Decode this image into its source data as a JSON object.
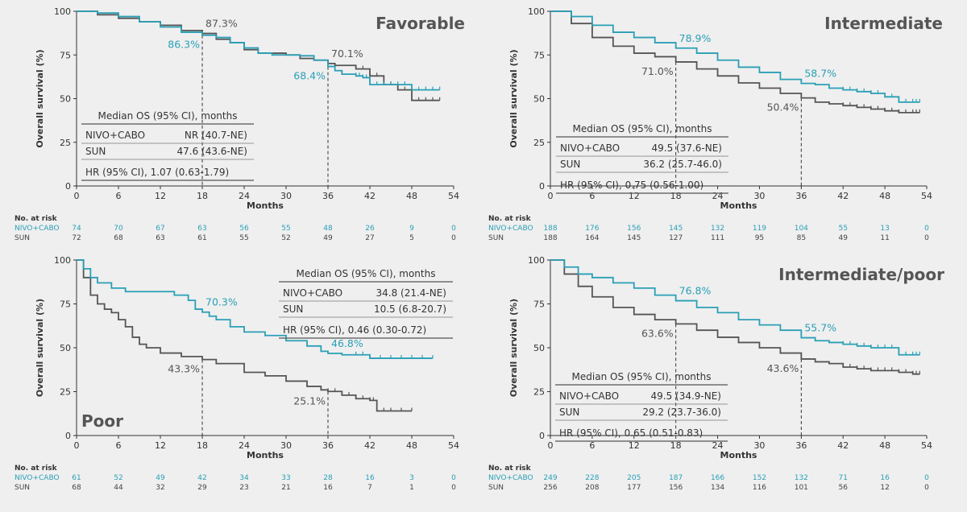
{
  "colors": {
    "nivo": "#2a9fb6",
    "sun": "#555555",
    "axis": "#333333"
  },
  "chart_data": [
    {
      "type": "line",
      "title": "Favorable",
      "xlabel": "Months",
      "ylabel": "Overall survival (%)",
      "xlim": [
        0,
        54
      ],
      "ylim": [
        0,
        100
      ],
      "xticks": [
        "0",
        "6",
        "12",
        "18",
        "24",
        "30",
        "36",
        "42",
        "48",
        "54"
      ],
      "yticks": [
        "0",
        "25",
        "50",
        "75",
        "100"
      ],
      "series": [
        {
          "name": "NIVO+CABO",
          "x": [
            0,
            3,
            6,
            9,
            12,
            15,
            18,
            20,
            22,
            24,
            26,
            28,
            30,
            32,
            34,
            36,
            37,
            38,
            39,
            40,
            41,
            42,
            44,
            46,
            48,
            50,
            52
          ],
          "values": [
            100,
            99,
            97,
            94,
            91,
            88,
            86.3,
            85,
            82,
            79,
            76,
            75,
            75,
            74.5,
            72,
            68.4,
            66,
            64,
            64,
            63,
            62,
            58,
            58,
            58,
            55,
            55,
            55
          ]
        },
        {
          "name": "SUN",
          "x": [
            0,
            3,
            6,
            9,
            12,
            15,
            18,
            20,
            22,
            24,
            26,
            28,
            30,
            32,
            34,
            36,
            37,
            38,
            40,
            42,
            44,
            46,
            48,
            50,
            52
          ],
          "values": [
            100,
            98,
            96,
            94,
            92,
            89,
            87.3,
            84,
            82,
            78,
            76,
            76,
            75,
            73,
            72,
            70.1,
            69,
            69,
            67,
            63,
            58,
            55,
            49,
            49,
            49
          ]
        }
      ],
      "annotations": [
        {
          "label": "86.3%",
          "series": "NIVO+CABO",
          "x": 18
        },
        {
          "label": "87.3%",
          "series": "SUN",
          "x": 18
        },
        {
          "label": "68.4%",
          "series": "NIVO+CABO",
          "x": 36
        },
        {
          "label": "70.1%",
          "series": "SUN",
          "x": 36
        }
      ],
      "median_table": {
        "header": "Median OS (95% CI), months",
        "rows": [
          {
            "arm": "NIVO+CABO",
            "value": "NR (40.7-NE)"
          },
          {
            "arm": "SUN",
            "value": "47.6 (43.6-NE)"
          }
        ],
        "hr": "HR (95% CI), 1.07 (0.63-1.79)"
      },
      "at_risk": {
        "title": "No. at risk",
        "rows": [
          {
            "arm": "NIVO+CABO",
            "values": [
              "74",
              "70",
              "67",
              "63",
              "56",
              "55",
              "48",
              "26",
              "9",
              "0"
            ]
          },
          {
            "arm": "SUN",
            "values": [
              "72",
              "68",
              "63",
              "61",
              "55",
              "52",
              "49",
              "27",
              "5",
              "0"
            ]
          }
        ]
      }
    },
    {
      "type": "line",
      "title": "Intermediate",
      "xlabel": "Months",
      "ylabel": "Overall survival (%)",
      "xlim": [
        0,
        54
      ],
      "ylim": [
        0,
        100
      ],
      "xticks": [
        "0",
        "6",
        "12",
        "18",
        "24",
        "30",
        "36",
        "42",
        "48",
        "54"
      ],
      "yticks": [
        "0",
        "25",
        "50",
        "75",
        "100"
      ],
      "series": [
        {
          "name": "NIVO+CABO",
          "x": [
            0,
            3,
            6,
            9,
            12,
            15,
            18,
            21,
            24,
            27,
            30,
            33,
            36,
            38,
            40,
            42,
            44,
            46,
            48,
            50,
            52,
            53
          ],
          "values": [
            100,
            97,
            92,
            88,
            85,
            82,
            78.9,
            76,
            72,
            68,
            65,
            61,
            58.7,
            58,
            56,
            55,
            54,
            53,
            51,
            48,
            48,
            48
          ]
        },
        {
          "name": "SUN",
          "x": [
            0,
            3,
            6,
            9,
            12,
            15,
            18,
            21,
            24,
            27,
            30,
            33,
            36,
            38,
            40,
            42,
            44,
            46,
            48,
            50,
            52,
            53
          ],
          "values": [
            100,
            93,
            85,
            80,
            76,
            74,
            71,
            67,
            63,
            59,
            56,
            53,
            50.4,
            48,
            47,
            46,
            45,
            44,
            43,
            42,
            42,
            42
          ]
        }
      ],
      "annotations": [
        {
          "label": "78.9%",
          "series": "NIVO+CABO",
          "x": 18
        },
        {
          "label": "71.0%",
          "series": "SUN",
          "x": 18
        },
        {
          "label": "58.7%",
          "series": "NIVO+CABO",
          "x": 36
        },
        {
          "label": "50.4%",
          "series": "SUN",
          "x": 36
        }
      ],
      "median_table": {
        "header": "Median OS (95% CI), months",
        "rows": [
          {
            "arm": "NIVO+CABO",
            "value": "49.5 (37.6-NE)"
          },
          {
            "arm": "SUN",
            "value": "36.2 (25.7-46.0)"
          }
        ],
        "hr": "HR (95% CI), 0.75 (0.56-1.00)"
      },
      "at_risk": {
        "title": "No. at risk",
        "rows": [
          {
            "arm": "NIVO+CABO",
            "values": [
              "188",
              "176",
              "156",
              "145",
              "132",
              "119",
              "104",
              "55",
              "13",
              "0"
            ]
          },
          {
            "arm": "SUN",
            "values": [
              "188",
              "164",
              "145",
              "127",
              "111",
              "95",
              "85",
              "49",
              "11",
              "0"
            ]
          }
        ]
      }
    },
    {
      "type": "line",
      "title": "Poor",
      "xlabel": "Months",
      "ylabel": "Overall survival (%)",
      "xlim": [
        0,
        54
      ],
      "ylim": [
        0,
        100
      ],
      "xticks": [
        "0",
        "6",
        "12",
        "18",
        "24",
        "30",
        "36",
        "42",
        "48",
        "54"
      ],
      "yticks": [
        "0",
        "25",
        "50",
        "75",
        "100"
      ],
      "series": [
        {
          "name": "NIVO+CABO",
          "x": [
            0,
            1,
            2,
            3,
            5,
            7,
            9,
            12,
            14,
            16,
            17,
            18,
            19,
            20,
            22,
            24,
            27,
            30,
            33,
            35,
            36,
            38,
            40,
            42,
            45,
            48,
            51
          ],
          "values": [
            100,
            95,
            90,
            87,
            84,
            82,
            82,
            82,
            80,
            77,
            72,
            70.3,
            68,
            66,
            62,
            59,
            57,
            54,
            51,
            48,
            46.8,
            46,
            46,
            44,
            44,
            44,
            44
          ]
        },
        {
          "name": "SUN",
          "x": [
            0,
            1,
            2,
            3,
            4,
            5,
            6,
            7,
            8,
            9,
            10,
            12,
            15,
            18,
            20,
            24,
            27,
            30,
            33,
            35,
            36,
            38,
            40,
            42,
            43,
            45,
            48
          ],
          "values": [
            100,
            90,
            80,
            75,
            72,
            70,
            66,
            62,
            56,
            52,
            50,
            47,
            45,
            43.3,
            41,
            36,
            34,
            31,
            28,
            26,
            25.1,
            23,
            21,
            20,
            14,
            14,
            14
          ]
        }
      ],
      "annotations": [
        {
          "label": "70.3%",
          "series": "NIVO+CABO",
          "x": 18
        },
        {
          "label": "43.3%",
          "series": "SUN",
          "x": 18
        },
        {
          "label": "46.8%",
          "series": "NIVO+CABO",
          "x": 36
        },
        {
          "label": "25.1%",
          "series": "SUN",
          "x": 36
        }
      ],
      "median_table": {
        "header": "Median OS (95% CI), months",
        "rows": [
          {
            "arm": "NIVO+CABO",
            "value": "34.8 (21.4-NE)"
          },
          {
            "arm": "SUN",
            "value": "10.5 (6.8-20.7)"
          }
        ],
        "hr": "HR (95% CI), 0.46 (0.30-0.72)"
      },
      "at_risk": {
        "title": "No. at risk",
        "rows": [
          {
            "arm": "NIVO+CABO",
            "values": [
              "61",
              "52",
              "49",
              "42",
              "34",
              "33",
              "28",
              "16",
              "3",
              "0"
            ]
          },
          {
            "arm": "SUN",
            "values": [
              "68",
              "44",
              "32",
              "29",
              "23",
              "21",
              "16",
              "7",
              "1",
              "0"
            ]
          }
        ]
      }
    },
    {
      "type": "line",
      "title": "Intermediate/poor",
      "xlabel": "Months",
      "ylabel": "Overall survival (%)",
      "xlim": [
        0,
        54
      ],
      "ylim": [
        0,
        100
      ],
      "xticks": [
        "0",
        "6",
        "12",
        "18",
        "24",
        "30",
        "36",
        "42",
        "48",
        "54"
      ],
      "yticks": [
        "0",
        "25",
        "50",
        "75",
        "100"
      ],
      "series": [
        {
          "name": "NIVO+CABO",
          "x": [
            0,
            2,
            4,
            6,
            9,
            12,
            15,
            18,
            21,
            24,
            27,
            30,
            33,
            36,
            38,
            40,
            42,
            44,
            46,
            48,
            50,
            52,
            53
          ],
          "values": [
            100,
            96,
            92,
            90,
            87,
            84,
            80,
            76.8,
            73,
            70,
            66,
            63,
            60,
            55.7,
            54,
            53,
            52,
            51,
            50,
            50,
            46,
            46,
            46
          ]
        },
        {
          "name": "SUN",
          "x": [
            0,
            2,
            4,
            6,
            9,
            12,
            15,
            18,
            21,
            24,
            27,
            30,
            33,
            36,
            38,
            40,
            42,
            44,
            46,
            48,
            50,
            52,
            53
          ],
          "values": [
            100,
            92,
            85,
            79,
            73,
            69,
            66,
            63.6,
            60,
            56,
            53,
            50,
            47,
            43.6,
            42,
            41,
            39,
            38,
            37,
            37,
            36,
            35,
            35
          ]
        }
      ],
      "annotations": [
        {
          "label": "76.8%",
          "series": "NIVO+CABO",
          "x": 18
        },
        {
          "label": "63.6%",
          "series": "SUN",
          "x": 18
        },
        {
          "label": "55.7%",
          "series": "NIVO+CABO",
          "x": 36
        },
        {
          "label": "43.6%",
          "series": "SUN",
          "x": 36
        }
      ],
      "median_table": {
        "header": "Median OS (95% CI), months",
        "rows": [
          {
            "arm": "NIVO+CABO",
            "value": "49.5 (34.9-NE)"
          },
          {
            "arm": "SUN",
            "value": "29.2 (23.7-36.0)"
          }
        ],
        "hr": "HR (95% CI), 0.65 (0.51-0.83)"
      },
      "at_risk": {
        "title": "No. at risk",
        "rows": [
          {
            "arm": "NIVO+CABO",
            "values": [
              "249",
              "228",
              "205",
              "187",
              "166",
              "152",
              "132",
              "71",
              "16",
              "0"
            ]
          },
          {
            "arm": "SUN",
            "values": [
              "256",
              "208",
              "177",
              "156",
              "134",
              "116",
              "101",
              "56",
              "12",
              "0"
            ]
          }
        ]
      }
    }
  ]
}
